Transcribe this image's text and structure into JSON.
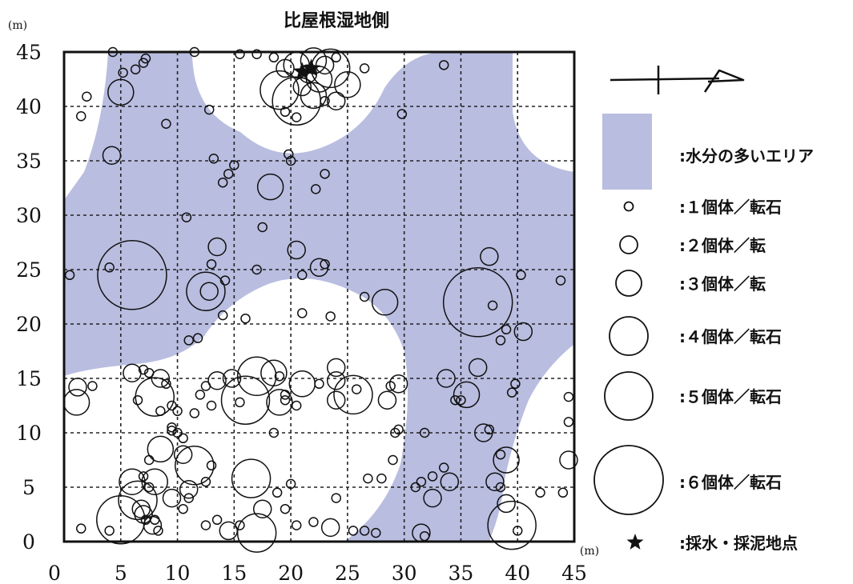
{
  "title": "比屋根湿地側",
  "chart_data": {
    "type": "scatter",
    "title": "比屋根湿地側",
    "xunit": "(m)",
    "yunit": "(m)",
    "xlim": [
      0,
      45
    ],
    "ylim": [
      0,
      45
    ],
    "xticks": [
      0,
      5,
      10,
      15,
      20,
      25,
      30,
      35,
      40,
      45
    ],
    "yticks": [
      0,
      5,
      10,
      15,
      20,
      25,
      30,
      35,
      40,
      45
    ],
    "grid": "dashed",
    "size_classes": [
      {
        "count": 1,
        "label": ":１個体／転石"
      },
      {
        "count": 2,
        "label": ":２個体／転"
      },
      {
        "count": 3,
        "label": ":３個体／転"
      },
      {
        "count": 4,
        "label": ":４個体／転石"
      },
      {
        "count": 5,
        "label": ":５個体／転石"
      },
      {
        "count": 6,
        "label": ":６個体／転石"
      }
    ],
    "wet_area_label": ":水分の多いエリア",
    "sampling_label": ":採水・採泥地点",
    "wet_color": "#b9bde0",
    "points": [
      [
        1.2,
        14.2,
        2
      ],
      [
        1.1,
        12.8,
        3
      ],
      [
        2.5,
        14.3,
        1
      ],
      [
        0.5,
        24.5,
        1
      ],
      [
        1.5,
        1.2,
        1
      ],
      [
        6.0,
        24.5,
        6
      ],
      [
        4.0,
        25.2,
        1
      ],
      [
        5.0,
        41.3,
        3
      ],
      [
        4.2,
        35.5,
        2
      ],
      [
        1.5,
        39.1,
        1
      ],
      [
        2.0,
        40.9,
        1
      ],
      [
        5.2,
        43.1,
        1
      ],
      [
        6.3,
        43.4,
        1
      ],
      [
        7.0,
        44.0,
        1
      ],
      [
        7.2,
        44.4,
        1
      ],
      [
        4.3,
        45.0,
        1
      ],
      [
        9.0,
        38.4,
        1
      ],
      [
        11.5,
        45.0,
        1
      ],
      [
        10.8,
        29.8,
        1
      ],
      [
        12.8,
        39.7,
        1
      ],
      [
        13.2,
        35.2,
        1
      ],
      [
        14.0,
        33.0,
        1
      ],
      [
        14.5,
        33.8,
        1
      ],
      [
        15.0,
        34.6,
        1
      ],
      [
        13.5,
        27.1,
        2
      ],
      [
        13.0,
        25.5,
        1
      ],
      [
        12.5,
        23.0,
        4
      ],
      [
        12.8,
        23.0,
        2
      ],
      [
        14.0,
        20.8,
        1
      ],
      [
        14.2,
        24.0,
        1
      ],
      [
        16.0,
        20.5,
        1
      ],
      [
        11.0,
        18.5,
        1
      ],
      [
        11.8,
        18.7,
        1
      ],
      [
        17.0,
        25.0,
        1
      ],
      [
        17.5,
        28.9,
        1
      ],
      [
        18.2,
        32.6,
        3
      ],
      [
        19.8,
        35.6,
        1
      ],
      [
        20.0,
        35.0,
        1
      ],
      [
        20.5,
        26.8,
        2
      ],
      [
        21.0,
        24.5,
        1
      ],
      [
        22.5,
        25.2,
        2
      ],
      [
        22.2,
        32.4,
        1
      ],
      [
        23.0,
        33.8,
        1
      ],
      [
        23.0,
        25.5,
        1
      ],
      [
        23.5,
        20.7,
        1
      ],
      [
        15.5,
        44.8,
        1
      ],
      [
        17.0,
        44.8,
        1
      ],
      [
        18.5,
        44.5,
        1
      ],
      [
        19.5,
        43.5,
        2
      ],
      [
        20.5,
        43.8,
        3
      ],
      [
        21.5,
        43.0,
        2
      ],
      [
        22.0,
        44.2,
        3
      ],
      [
        22.5,
        42.5,
        3
      ],
      [
        23.0,
        43.8,
        2
      ],
      [
        24.0,
        44.5,
        1
      ],
      [
        23.5,
        43.5,
        4
      ],
      [
        25.0,
        42.0,
        3
      ],
      [
        19.0,
        41.5,
        4
      ],
      [
        20.5,
        40.5,
        5
      ],
      [
        21.0,
        41.8,
        2
      ],
      [
        22.0,
        41.0,
        3
      ],
      [
        23.0,
        40.5,
        1
      ],
      [
        24.0,
        40.5,
        2
      ],
      [
        19.5,
        39.5,
        1
      ],
      [
        20.5,
        39.0,
        1
      ],
      [
        26.5,
        43.5,
        1
      ],
      [
        29.8,
        39.3,
        1
      ],
      [
        33.5,
        43.8,
        1
      ],
      [
        28.3,
        22.0,
        3
      ],
      [
        26.5,
        22.5,
        1
      ],
      [
        6.0,
        15.5,
        2
      ],
      [
        6.5,
        13.0,
        1
      ],
      [
        7.0,
        15.8,
        1
      ],
      [
        7.5,
        15.5,
        1
      ],
      [
        8.5,
        15.0,
        2
      ],
      [
        9.0,
        14.5,
        1
      ],
      [
        8.0,
        13.3,
        4
      ],
      [
        8.5,
        12.0,
        1
      ],
      [
        9.5,
        12.5,
        1
      ],
      [
        10.0,
        12.0,
        1
      ],
      [
        9.5,
        10.5,
        1
      ],
      [
        10.0,
        10.0,
        1
      ],
      [
        12.0,
        13.5,
        1
      ],
      [
        11.5,
        11.8,
        1
      ],
      [
        13.0,
        12.5,
        1
      ],
      [
        12.5,
        14.3,
        1
      ],
      [
        13.5,
        14.8,
        2
      ],
      [
        14.8,
        15.0,
        2
      ],
      [
        15.5,
        12.8,
        1
      ],
      [
        16.0,
        13.0,
        5
      ],
      [
        17.0,
        15.2,
        4
      ],
      [
        18.5,
        15.5,
        3
      ],
      [
        19.0,
        15.2,
        1
      ],
      [
        19.5,
        13.5,
        1
      ],
      [
        19.0,
        12.8,
        3
      ],
      [
        19.5,
        13.0,
        1
      ],
      [
        20.5,
        12.5,
        1
      ],
      [
        21.0,
        14.5,
        3
      ],
      [
        22.5,
        14.5,
        1
      ],
      [
        24.0,
        14.8,
        2
      ],
      [
        24.0,
        13.0,
        2
      ],
      [
        24.0,
        16.0,
        2
      ],
      [
        25.5,
        13.5,
        4
      ],
      [
        25.8,
        14.0,
        1
      ],
      [
        28.5,
        13.0,
        2
      ],
      [
        28.8,
        14.3,
        1
      ],
      [
        29.5,
        14.5,
        2
      ],
      [
        29.2,
        10.0,
        1
      ],
      [
        29.5,
        10.3,
        1
      ],
      [
        31.8,
        10.0,
        1
      ],
      [
        33.7,
        15.0,
        2
      ],
      [
        34.5,
        13.0,
        1
      ],
      [
        35.0,
        13.0,
        1
      ],
      [
        35.5,
        13.5,
        3
      ],
      [
        36.5,
        16.0,
        2
      ],
      [
        36.5,
        22.0,
        6
      ],
      [
        37.5,
        26.2,
        2
      ],
      [
        37.8,
        21.7,
        1
      ],
      [
        38.5,
        18.5,
        1
      ],
      [
        39.0,
        19.5,
        1
      ],
      [
        40.5,
        19.3,
        2
      ],
      [
        40.3,
        24.5,
        1
      ],
      [
        43.8,
        24.0,
        1
      ],
      [
        39.5,
        13.7,
        1
      ],
      [
        39.8,
        14.5,
        1
      ],
      [
        37.5,
        10.3,
        1
      ],
      [
        37.0,
        10.0,
        2
      ],
      [
        38.5,
        8.0,
        1
      ],
      [
        39.0,
        7.5,
        3
      ],
      [
        38.0,
        5.5,
        2
      ],
      [
        38.5,
        5.0,
        1
      ],
      [
        39.0,
        3.5,
        2
      ],
      [
        39.5,
        1.5,
        5
      ],
      [
        40.0,
        1.0,
        1
      ],
      [
        42.0,
        4.5,
        1
      ],
      [
        44.0,
        4.5,
        1
      ],
      [
        44.5,
        7.5,
        2
      ],
      [
        44.5,
        11.0,
        1
      ],
      [
        44.5,
        13.3,
        1
      ],
      [
        34.0,
        5.5,
        2
      ],
      [
        33.5,
        6.8,
        1
      ],
      [
        32.5,
        6.0,
        1
      ],
      [
        31.5,
        5.5,
        1
      ],
      [
        31.0,
        5.0,
        1
      ],
      [
        32.5,
        4.0,
        2
      ],
      [
        31.8,
        0.5,
        1
      ],
      [
        31.5,
        0.8,
        2
      ],
      [
        28.0,
        5.8,
        1
      ],
      [
        29.0,
        7.5,
        1
      ],
      [
        26.8,
        5.8,
        1
      ],
      [
        25.5,
        1.0,
        1
      ],
      [
        26.5,
        1.0,
        1
      ],
      [
        27.5,
        0.8,
        1
      ],
      [
        24.0,
        4.0,
        1
      ],
      [
        23.5,
        1.3,
        2
      ],
      [
        22.0,
        1.8,
        1
      ],
      [
        20.5,
        1.5,
        1
      ],
      [
        20.0,
        5.3,
        1
      ],
      [
        19.5,
        3.0,
        1
      ],
      [
        18.8,
        4.5,
        1
      ],
      [
        17.0,
        0.8,
        4
      ],
      [
        17.5,
        3.0,
        2
      ],
      [
        16.5,
        5.8,
        4
      ],
      [
        15.5,
        1.5,
        1
      ],
      [
        14.5,
        1.0,
        2
      ],
      [
        13.5,
        2.0,
        1
      ],
      [
        12.5,
        5.5,
        1
      ],
      [
        13.0,
        7.0,
        1
      ],
      [
        11.5,
        7.0,
        4
      ],
      [
        10.5,
        8.0,
        2
      ],
      [
        10.5,
        9.5,
        1
      ],
      [
        9.5,
        10.2,
        1
      ],
      [
        8.5,
        8.5,
        3
      ],
      [
        8.0,
        5.5,
        3
      ],
      [
        7.5,
        7.5,
        1
      ],
      [
        7.0,
        6.0,
        1
      ],
      [
        7.5,
        5.0,
        1
      ],
      [
        6.0,
        5.5,
        3
      ],
      [
        6.5,
        3.8,
        4
      ],
      [
        6.8,
        3.0,
        2
      ],
      [
        7.0,
        2.5,
        2
      ],
      [
        7.2,
        2.0,
        1
      ],
      [
        7.8,
        1.5,
        2
      ],
      [
        8.0,
        2.0,
        1
      ],
      [
        8.3,
        1.0,
        1
      ],
      [
        5.0,
        2.0,
        5
      ],
      [
        4.0,
        1.0,
        1
      ],
      [
        9.5,
        4.0,
        2
      ],
      [
        10.5,
        3.0,
        1
      ],
      [
        11.0,
        4.0,
        1
      ],
      [
        11.0,
        4.8,
        2
      ],
      [
        12.5,
        1.5,
        1
      ],
      [
        18.5,
        10.0,
        1
      ],
      [
        21.0,
        21.0,
        1
      ]
    ],
    "sampling_points": [
      [
        21.0,
        43.2
      ],
      [
        21.8,
        43.5
      ]
    ]
  }
}
